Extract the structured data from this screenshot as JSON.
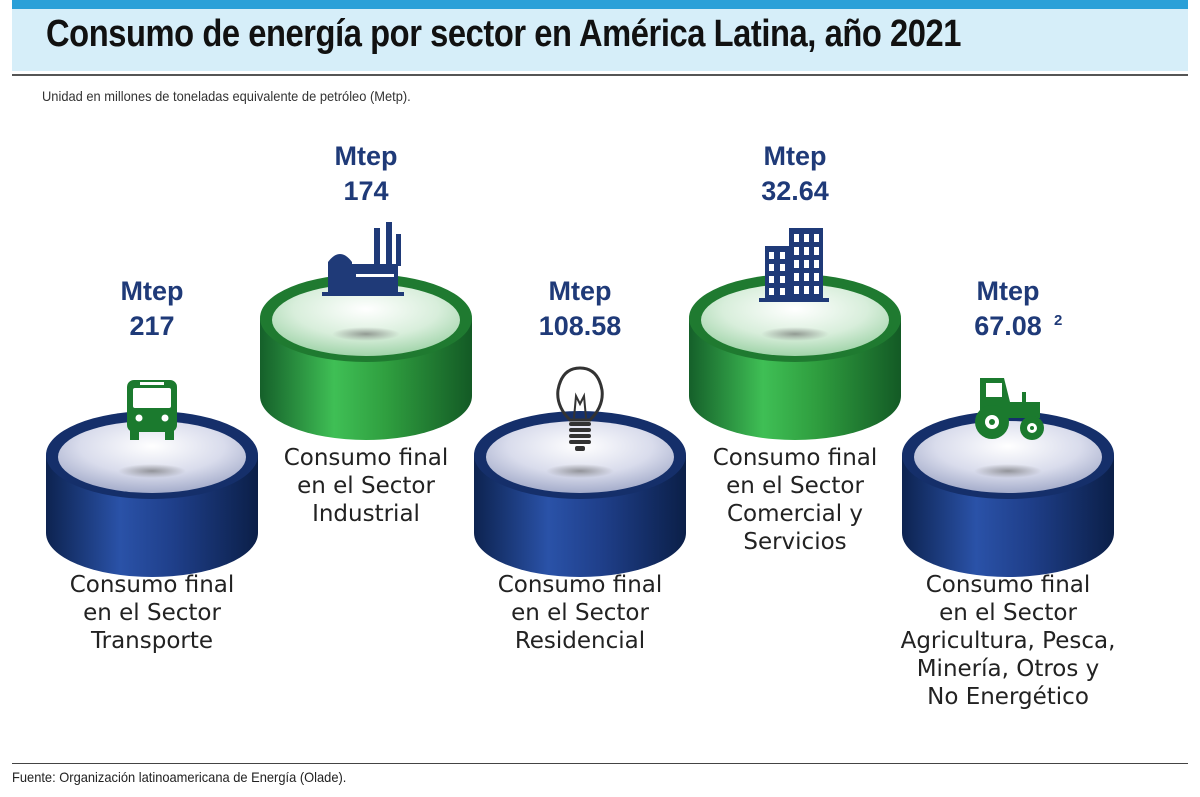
{
  "header": {
    "title": "Consumo de energía por sector en América Latina, año 2021",
    "subtitle": "Unidad en millones de toneladas equivalente de petróleo (Metp).",
    "source": "Fuente: Organización latinoamericana de Energía (Olade)."
  },
  "colors": {
    "blue_base": "#1f3f8a",
    "green_base": "#2f9e3f",
    "value_text": "#1f3a78",
    "accent": "#2aa0d8"
  },
  "chart_data": {
    "type": "bar",
    "title": "Consumo de energía por sector en América Latina, año 2021",
    "unit": "Mtep",
    "categories": [
      "Consumo final en el Sector Transporte",
      "Consumo final en el Sector Industrial",
      "Consumo final en el Sector Residencial",
      "Consumo final en el Sector Comercial y Servicios",
      "Consumo final en el Sector Agricultura, Pesca, Minería, Otros y No Energético"
    ],
    "values": [
      217,
      174,
      108.58,
      32.64,
      67.08
    ],
    "value_labels": [
      "217",
      "174",
      "108.58",
      "32.64",
      "67.08"
    ],
    "footnotes": [
      "",
      "",
      "",
      "",
      "2"
    ],
    "label_lines": [
      [
        "Consumo final",
        "en el Sector",
        "Transporte"
      ],
      [
        "Consumo final",
        "en el Sector",
        "Industrial"
      ],
      [
        "Consumo final",
        "en el Sector",
        "Residencial"
      ],
      [
        "Consumo final",
        "en el Sector",
        "Comercial y",
        "Servicios"
      ],
      [
        "Consumo final",
        "en el Sector",
        "Agricultura, Pesca,",
        "Minería, Otros y",
        "No Energético"
      ]
    ],
    "icons": [
      "bus-icon",
      "factory-icon",
      "lightbulb-icon",
      "building-icon",
      "tractor-icon"
    ],
    "styles": [
      "blue",
      "green",
      "blue",
      "green",
      "blue"
    ]
  }
}
